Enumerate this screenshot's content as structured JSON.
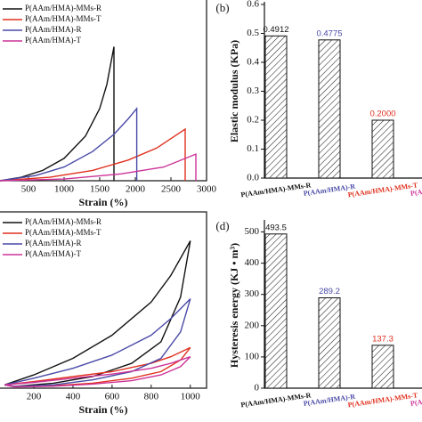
{
  "chart_data": [
    {
      "type": "line",
      "xlabel": "Strain (%)",
      "xlim": [
        100,
        3000
      ],
      "ylim": [
        0,
        1
      ],
      "xticks": [
        500,
        1000,
        1500,
        2000,
        2500,
        3000
      ],
      "legend": "upper left",
      "series": [
        {
          "name": "P(AAm/HMA)-MMs-R",
          "color": "#111111",
          "x": [
            100,
            400,
            700,
            1000,
            1300,
            1500,
            1600,
            1700,
            1700
          ],
          "values": [
            0,
            0.02,
            0.06,
            0.13,
            0.26,
            0.42,
            0.56,
            0.78,
            0
          ]
        },
        {
          "name": "P(AAm/HMA)-MMs-T",
          "color": "#e0301e",
          "x": [
            100,
            800,
            1400,
            1900,
            2300,
            2700,
            2700
          ],
          "values": [
            0,
            0.02,
            0.06,
            0.12,
            0.19,
            0.3,
            0
          ]
        },
        {
          "name": "P(AAm/HMA)-R",
          "color": "#4a4aa8",
          "x": [
            100,
            600,
            1000,
            1400,
            1700,
            1900,
            2020,
            2020
          ],
          "values": [
            0,
            0.03,
            0.08,
            0.17,
            0.27,
            0.36,
            0.42,
            0
          ]
        },
        {
          "name": "P(AAm/HMA)-T",
          "color": "#cc3399",
          "x": [
            100,
            1000,
            1800,
            2400,
            2850,
            2850
          ],
          "values": [
            0,
            0.01,
            0.04,
            0.08,
            0.155,
            0
          ]
        }
      ]
    },
    {
      "type": "bar",
      "panel": "(b)",
      "ylabel": "Elastic modulus (KPa)",
      "ylim": [
        0,
        0.6
      ],
      "yticks": [
        {
          "value": 0,
          "label": "0.0"
        },
        0.1,
        0.2,
        0.3,
        0.4,
        0.5,
        0.6
      ],
      "categories": [
        "P(AAm/HMA)-MMs-R",
        "P(AAm/HMA)-R",
        "P(AAm/HMA)-MMs-T",
        "P(AAm/HMA)-T"
      ],
      "category_colors": [
        "#111111",
        "#4a4aa8",
        "#e0301e",
        "#cc3399"
      ],
      "values": [
        0.4912,
        0.4775,
        0.2,
        null
      ],
      "value_labels": [
        "0.4912",
        "0.4775",
        "0.2000",
        null
      ]
    },
    {
      "type": "line",
      "xlabel": "Strain (%)",
      "xlim": [
        27,
        1083
      ],
      "ylim": [
        0,
        1
      ],
      "xticks": [
        200,
        400,
        600,
        800,
        1000
      ],
      "legend": "upper left",
      "series": [
        {
          "name": "P(AAm/HMA)-MMs-R",
          "color": "#111111",
          "x": [
            50,
            200,
            400,
            600,
            800,
            900,
            1000,
            950,
            850,
            700,
            500,
            300,
            100,
            50
          ],
          "values": [
            0.02,
            0.08,
            0.18,
            0.32,
            0.52,
            0.68,
            0.89,
            0.55,
            0.28,
            0.15,
            0.07,
            0.03,
            0.01,
            0.02
          ]
        },
        {
          "name": "P(AAm/HMA)-MMs-T",
          "color": "#e0301e",
          "x": [
            50,
            200,
            400,
            600,
            800,
            900,
            1000,
            950,
            850,
            700,
            500,
            300,
            100,
            50
          ],
          "values": [
            0.02,
            0.04,
            0.07,
            0.1,
            0.15,
            0.19,
            0.245,
            0.17,
            0.1,
            0.06,
            0.03,
            0.015,
            0.01,
            0.02
          ]
        },
        {
          "name": "P(AAm/HMA)-R",
          "color": "#4a4aa8",
          "x": [
            50,
            200,
            400,
            600,
            800,
            900,
            1000,
            950,
            850,
            700,
            500,
            300,
            100,
            50
          ],
          "values": [
            0.02,
            0.06,
            0.12,
            0.2,
            0.32,
            0.42,
            0.54,
            0.34,
            0.18,
            0.1,
            0.05,
            0.02,
            0.01,
            0.02
          ]
        },
        {
          "name": "P(AAm/HMA)-T",
          "color": "#cc3399",
          "x": [
            50,
            200,
            400,
            600,
            800,
            900,
            1000,
            950,
            850,
            700,
            500,
            300,
            100,
            50
          ],
          "values": [
            0.02,
            0.035,
            0.06,
            0.085,
            0.12,
            0.15,
            0.19,
            0.13,
            0.08,
            0.045,
            0.025,
            0.012,
            0.008,
            0.02
          ]
        }
      ]
    },
    {
      "type": "bar",
      "panel": "(d)",
      "ylabel": "Hysteresis energy (KJ • m³)",
      "ylim": [
        0,
        530
      ],
      "yticks": [
        0,
        100,
        200,
        300,
        400,
        500
      ],
      "categories": [
        "P(AAm/HMA)-MMs-R",
        "P(AAm/HMA)-R",
        "P(AAm/HMA)-MMs-T",
        "P(AAm/HMA)-T"
      ],
      "category_colors": [
        "#111111",
        "#4a4aa8",
        "#e0301e",
        "#cc3399"
      ],
      "values": [
        493.5,
        289.2,
        137.3,
        null
      ],
      "value_labels": [
        "493.5",
        "289.2",
        "137.3",
        null
      ]
    }
  ]
}
